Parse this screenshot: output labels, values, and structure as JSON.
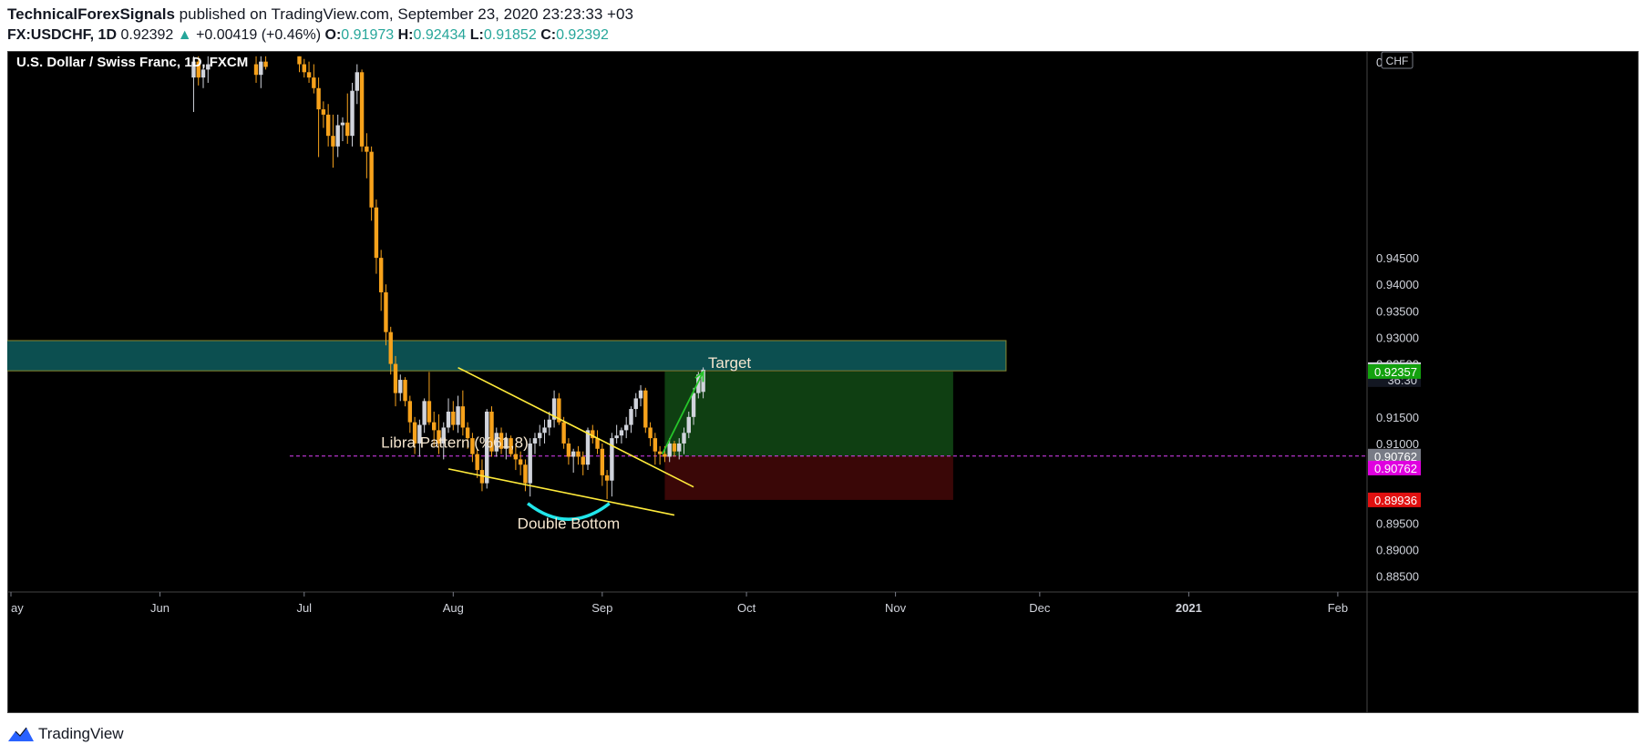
{
  "header": {
    "author": "TechnicalForexSignals",
    "published": "published on TradingView.com, September 23, 2020 23:23:33 +03",
    "symbol": "FX:USDCHF, 1D",
    "last": "0.92392",
    "change": "+0.00419 (+0.46%)",
    "o_label": "O:",
    "o_value": "0.91973",
    "h_label": "H:",
    "h_value": "0.92434",
    "l_label": "L:",
    "l_value": "0.91852",
    "c_label": "C:",
    "c_value": "0.92392"
  },
  "footer": {
    "brand": "TradingView"
  },
  "colors": {
    "up": "#d1d4dc",
    "down": "#f7a21b",
    "zone": "#0c4f50",
    "profit": "#0f3f12",
    "loss": "#3a0707",
    "trend": "#ffeb3b",
    "arrow": "#26c62a",
    "arc": "#21e6ea",
    "dashed": "#e040fb"
  },
  "chart_data": {
    "type": "candlestick",
    "title": "U.S. Dollar / Swiss Franc, 1D, FXCM",
    "currency_label": "CHF",
    "ylim": [
      0.882,
      0.984
    ],
    "y_ticks": [
      {
        "value": 0.945,
        "label": "0.94500"
      },
      {
        "value": 0.94,
        "label": "0.94000"
      },
      {
        "value": 0.935,
        "label": "0.93500"
      },
      {
        "value": 0.93,
        "label": "0.93000"
      },
      {
        "value": 0.925,
        "label": "0.92500"
      },
      {
        "value": 0.915,
        "label": "0.91500"
      },
      {
        "value": 0.91,
        "label": "0.91000"
      },
      {
        "value": 0.895,
        "label": "0.89500"
      },
      {
        "value": 0.89,
        "label": "0.89000"
      },
      {
        "value": 0.885,
        "label": "0.88500"
      }
    ],
    "x_ticks": [
      {
        "day": 0,
        "label": "ay"
      },
      {
        "day": 31,
        "label": "Jun"
      },
      {
        "day": 61,
        "label": "Jul"
      },
      {
        "day": 92,
        "label": "Aug"
      },
      {
        "day": 123,
        "label": "Sep"
      },
      {
        "day": 153,
        "label": "Oct"
      },
      {
        "day": 184,
        "label": "Nov"
      },
      {
        "day": 214,
        "label": "Dec"
      },
      {
        "day": 245,
        "label": "2021"
      },
      {
        "day": 276,
        "label": "Feb"
      }
    ],
    "price_labels": [
      {
        "value": 0.92392,
        "label": "0.92392",
        "bg": "#d1d4dc",
        "fg": "#131722"
      },
      {
        "value": 0.92204,
        "label": "36:30",
        "bg": "#131722",
        "fg": "#d1d4dc"
      },
      {
        "value": 0.92357,
        "label": "0.92357",
        "bg": "#13a10e",
        "fg": "#ffffff"
      },
      {
        "value": 0.90762,
        "label": "0.90762",
        "bg": "#787b86",
        "fg": "#ffffff"
      },
      {
        "value": 0.90537,
        "label": "0.90762",
        "bg": "#e000e0",
        "fg": "#ffffff"
      },
      {
        "value": 0.89936,
        "label": "0.89936",
        "bg": "#e01010",
        "fg": "#ffffff"
      }
    ],
    "candles": [
      {
        "day": 38,
        "o": 0.979,
        "h": 0.983,
        "l": 0.9725,
        "c": 0.982
      },
      {
        "day": 39,
        "o": 0.982,
        "h": 0.983,
        "l": 0.9775,
        "c": 0.979
      },
      {
        "day": 40,
        "o": 0.979,
        "h": 0.9815,
        "l": 0.977,
        "c": 0.9805
      },
      {
        "day": 41,
        "o": 0.9805,
        "h": 0.983,
        "l": 0.978,
        "c": 0.9815
      },
      {
        "day": 51,
        "o": 0.9815,
        "h": 0.983,
        "l": 0.978,
        "c": 0.9795
      },
      {
        "day": 52,
        "o": 0.9795,
        "h": 0.983,
        "l": 0.977,
        "c": 0.982
      },
      {
        "day": 53,
        "o": 0.982,
        "h": 0.983,
        "l": 0.9805,
        "c": 0.981
      },
      {
        "day": 60,
        "o": 0.983,
        "h": 0.983,
        "l": 0.98,
        "c": 0.9815
      },
      {
        "day": 61,
        "o": 0.9815,
        "h": 0.9825,
        "l": 0.979,
        "c": 0.98
      },
      {
        "day": 62,
        "o": 0.98,
        "h": 0.982,
        "l": 0.978,
        "c": 0.979
      },
      {
        "day": 63,
        "o": 0.979,
        "h": 0.9815,
        "l": 0.976,
        "c": 0.977
      },
      {
        "day": 64,
        "o": 0.977,
        "h": 0.979,
        "l": 0.964,
        "c": 0.973
      },
      {
        "day": 65,
        "o": 0.973,
        "h": 0.9745,
        "l": 0.9695,
        "c": 0.972
      },
      {
        "day": 66,
        "o": 0.972,
        "h": 0.974,
        "l": 0.966,
        "c": 0.968
      },
      {
        "day": 67,
        "o": 0.968,
        "h": 0.972,
        "l": 0.962,
        "c": 0.966
      },
      {
        "day": 68,
        "o": 0.966,
        "h": 0.972,
        "l": 0.964,
        "c": 0.97
      },
      {
        "day": 69,
        "o": 0.97,
        "h": 0.9715,
        "l": 0.967,
        "c": 0.9705
      },
      {
        "day": 70,
        "o": 0.9705,
        "h": 0.976,
        "l": 0.9665,
        "c": 0.968
      },
      {
        "day": 71,
        "o": 0.968,
        "h": 0.978,
        "l": 0.966,
        "c": 0.9765
      },
      {
        "day": 72,
        "o": 0.9765,
        "h": 0.9815,
        "l": 0.974,
        "c": 0.98
      },
      {
        "day": 73,
        "o": 0.98,
        "h": 0.9805,
        "l": 0.965,
        "c": 0.966
      },
      {
        "day": 74,
        "o": 0.966,
        "h": 0.9685,
        "l": 0.96,
        "c": 0.965
      },
      {
        "day": 75,
        "o": 0.965,
        "h": 0.966,
        "l": 0.952,
        "c": 0.9545
      },
      {
        "day": 76,
        "o": 0.9545,
        "h": 0.956,
        "l": 0.942,
        "c": 0.945
      },
      {
        "day": 77,
        "o": 0.945,
        "h": 0.9465,
        "l": 0.935,
        "c": 0.9385
      },
      {
        "day": 78,
        "o": 0.9385,
        "h": 0.94,
        "l": 0.9285,
        "c": 0.931
      },
      {
        "day": 79,
        "o": 0.931,
        "h": 0.932,
        "l": 0.923,
        "c": 0.925
      },
      {
        "day": 80,
        "o": 0.925,
        "h": 0.9265,
        "l": 0.917,
        "c": 0.9195
      },
      {
        "day": 81,
        "o": 0.9195,
        "h": 0.923,
        "l": 0.918,
        "c": 0.922
      },
      {
        "day": 82,
        "o": 0.922,
        "h": 0.9225,
        "l": 0.917,
        "c": 0.918
      },
      {
        "day": 83,
        "o": 0.918,
        "h": 0.919,
        "l": 0.912,
        "c": 0.914
      },
      {
        "day": 84,
        "o": 0.914,
        "h": 0.915,
        "l": 0.908,
        "c": 0.91
      },
      {
        "day": 85,
        "o": 0.91,
        "h": 0.9145,
        "l": 0.9075,
        "c": 0.9135
      },
      {
        "day": 86,
        "o": 0.9135,
        "h": 0.9185,
        "l": 0.912,
        "c": 0.918
      },
      {
        "day": 87,
        "o": 0.918,
        "h": 0.9235,
        "l": 0.9135,
        "c": 0.914
      },
      {
        "day": 88,
        "o": 0.914,
        "h": 0.916,
        "l": 0.9095,
        "c": 0.9125
      },
      {
        "day": 89,
        "o": 0.9125,
        "h": 0.9155,
        "l": 0.908,
        "c": 0.91
      },
      {
        "day": 90,
        "o": 0.91,
        "h": 0.914,
        "l": 0.907,
        "c": 0.913
      },
      {
        "day": 91,
        "o": 0.913,
        "h": 0.9185,
        "l": 0.912,
        "c": 0.916
      },
      {
        "day": 92,
        "o": 0.916,
        "h": 0.918,
        "l": 0.9125,
        "c": 0.9135
      },
      {
        "day": 93,
        "o": 0.9135,
        "h": 0.919,
        "l": 0.912,
        "c": 0.917
      },
      {
        "day": 94,
        "o": 0.917,
        "h": 0.92,
        "l": 0.9115,
        "c": 0.913
      },
      {
        "day": 95,
        "o": 0.913,
        "h": 0.914,
        "l": 0.909,
        "c": 0.911
      },
      {
        "day": 96,
        "o": 0.911,
        "h": 0.912,
        "l": 0.9065,
        "c": 0.908
      },
      {
        "day": 97,
        "o": 0.908,
        "h": 0.909,
        "l": 0.9035,
        "c": 0.905
      },
      {
        "day": 98,
        "o": 0.905,
        "h": 0.907,
        "l": 0.901,
        "c": 0.9025
      },
      {
        "day": 99,
        "o": 0.9025,
        "h": 0.9165,
        "l": 0.9015,
        "c": 0.916
      },
      {
        "day": 100,
        "o": 0.916,
        "h": 0.917,
        "l": 0.9075,
        "c": 0.9085
      },
      {
        "day": 101,
        "o": 0.9085,
        "h": 0.913,
        "l": 0.9075,
        "c": 0.912
      },
      {
        "day": 102,
        "o": 0.912,
        "h": 0.913,
        "l": 0.908,
        "c": 0.909
      },
      {
        "day": 103,
        "o": 0.909,
        "h": 0.912,
        "l": 0.907,
        "c": 0.911
      },
      {
        "day": 104,
        "o": 0.911,
        "h": 0.9115,
        "l": 0.9075,
        "c": 0.908
      },
      {
        "day": 105,
        "o": 0.908,
        "h": 0.9095,
        "l": 0.905,
        "c": 0.907
      },
      {
        "day": 106,
        "o": 0.907,
        "h": 0.9085,
        "l": 0.904,
        "c": 0.906
      },
      {
        "day": 107,
        "o": 0.906,
        "h": 0.907,
        "l": 0.901,
        "c": 0.9025
      },
      {
        "day": 108,
        "o": 0.9025,
        "h": 0.911,
        "l": 0.9,
        "c": 0.91
      },
      {
        "day": 109,
        "o": 0.91,
        "h": 0.912,
        "l": 0.908,
        "c": 0.911
      },
      {
        "day": 110,
        "o": 0.911,
        "h": 0.9135,
        "l": 0.9095,
        "c": 0.912
      },
      {
        "day": 111,
        "o": 0.912,
        "h": 0.9145,
        "l": 0.91,
        "c": 0.913
      },
      {
        "day": 112,
        "o": 0.913,
        "h": 0.916,
        "l": 0.9115,
        "c": 0.9145
      },
      {
        "day": 113,
        "o": 0.9145,
        "h": 0.92,
        "l": 0.913,
        "c": 0.9185
      },
      {
        "day": 114,
        "o": 0.9185,
        "h": 0.9195,
        "l": 0.9135,
        "c": 0.914
      },
      {
        "day": 115,
        "o": 0.914,
        "h": 0.915,
        "l": 0.909,
        "c": 0.91
      },
      {
        "day": 116,
        "o": 0.91,
        "h": 0.911,
        "l": 0.906,
        "c": 0.9075
      },
      {
        "day": 117,
        "o": 0.9075,
        "h": 0.909,
        "l": 0.9045,
        "c": 0.9085
      },
      {
        "day": 118,
        "o": 0.9085,
        "h": 0.9095,
        "l": 0.906,
        "c": 0.9075
      },
      {
        "day": 119,
        "o": 0.9075,
        "h": 0.9085,
        "l": 0.904,
        "c": 0.906
      },
      {
        "day": 120,
        "o": 0.906,
        "h": 0.913,
        "l": 0.905,
        "c": 0.9125
      },
      {
        "day": 121,
        "o": 0.9125,
        "h": 0.9135,
        "l": 0.91,
        "c": 0.911
      },
      {
        "day": 122,
        "o": 0.911,
        "h": 0.9125,
        "l": 0.908,
        "c": 0.909
      },
      {
        "day": 123,
        "o": 0.909,
        "h": 0.91,
        "l": 0.902,
        "c": 0.904
      },
      {
        "day": 124,
        "o": 0.904,
        "h": 0.905,
        "l": 0.8995,
        "c": 0.903
      },
      {
        "day": 125,
        "o": 0.903,
        "h": 0.912,
        "l": 0.9,
        "c": 0.911
      },
      {
        "day": 126,
        "o": 0.911,
        "h": 0.9135,
        "l": 0.91,
        "c": 0.9115
      },
      {
        "day": 127,
        "o": 0.9115,
        "h": 0.913,
        "l": 0.91,
        "c": 0.9125
      },
      {
        "day": 128,
        "o": 0.9125,
        "h": 0.915,
        "l": 0.911,
        "c": 0.9135
      },
      {
        "day": 129,
        "o": 0.9135,
        "h": 0.917,
        "l": 0.912,
        "c": 0.9165
      },
      {
        "day": 130,
        "o": 0.9165,
        "h": 0.9195,
        "l": 0.915,
        "c": 0.9185
      },
      {
        "day": 131,
        "o": 0.9185,
        "h": 0.921,
        "l": 0.917,
        "c": 0.92
      },
      {
        "day": 132,
        "o": 0.92,
        "h": 0.9205,
        "l": 0.912,
        "c": 0.913
      },
      {
        "day": 133,
        "o": 0.913,
        "h": 0.914,
        "l": 0.9095,
        "c": 0.911
      },
      {
        "day": 134,
        "o": 0.911,
        "h": 0.912,
        "l": 0.906,
        "c": 0.9085
      },
      {
        "day": 135,
        "o": 0.9085,
        "h": 0.9095,
        "l": 0.906,
        "c": 0.908
      },
      {
        "day": 136,
        "o": 0.908,
        "h": 0.9095,
        "l": 0.9065,
        "c": 0.9075
      },
      {
        "day": 137,
        "o": 0.9075,
        "h": 0.911,
        "l": 0.9065,
        "c": 0.91
      },
      {
        "day": 138,
        "o": 0.91,
        "h": 0.9105,
        "l": 0.9075,
        "c": 0.9085
      },
      {
        "day": 139,
        "o": 0.9085,
        "h": 0.911,
        "l": 0.907,
        "c": 0.91
      },
      {
        "day": 140,
        "o": 0.91,
        "h": 0.913,
        "l": 0.908,
        "c": 0.912
      },
      {
        "day": 141,
        "o": 0.912,
        "h": 0.916,
        "l": 0.911,
        "c": 0.915
      },
      {
        "day": 142,
        "o": 0.915,
        "h": 0.9205,
        "l": 0.9135,
        "c": 0.9195
      },
      {
        "day": 143,
        "o": 0.9195,
        "h": 0.9235,
        "l": 0.9185,
        "c": 0.923
      },
      {
        "day": 144,
        "o": 0.91973,
        "h": 0.92434,
        "l": 0.91852,
        "c": 0.92392
      }
    ],
    "zones": [
      {
        "name": "supply-zone",
        "from_day": -1,
        "to_day": 207,
        "y0": 0.9237,
        "y1": 0.9294
      },
      {
        "name": "profit-zone",
        "from_day": 136,
        "to_day": 196,
        "y0": 0.90762,
        "y1": 0.92357
      },
      {
        "name": "loss-zone",
        "from_day": 136,
        "to_day": 196,
        "y0": 0.89936,
        "y1": 0.90762
      }
    ],
    "levels": [
      {
        "name": "libra-level",
        "from_day": 58,
        "to_day": 285,
        "value": 0.90762
      }
    ],
    "trendlines": [
      {
        "name": "upper-trendline",
        "x0": 93,
        "y0": 0.9243,
        "x1": 142,
        "y1": 0.9018
      },
      {
        "name": "lower-trendline",
        "x0": 91,
        "y0": 0.9052,
        "x1": 138,
        "y1": 0.8965
      }
    ],
    "arrow": {
      "from_day": 135.5,
      "from_value": 0.908,
      "to_day": 144,
      "to_value": 0.9235
    },
    "arc": {
      "from_day": 107.5,
      "to_day": 124.5,
      "top_value": 0.8987,
      "bottom_value": 0.8957
    },
    "annotations": [
      {
        "text": "Target",
        "day": 145,
        "value": 0.9242
      },
      {
        "text": "Libra Pattern (%61,8)",
        "day": 77,
        "value": 0.9092
      },
      {
        "text": "Double Bottom",
        "day": 116,
        "value": 0.8939
      }
    ]
  }
}
